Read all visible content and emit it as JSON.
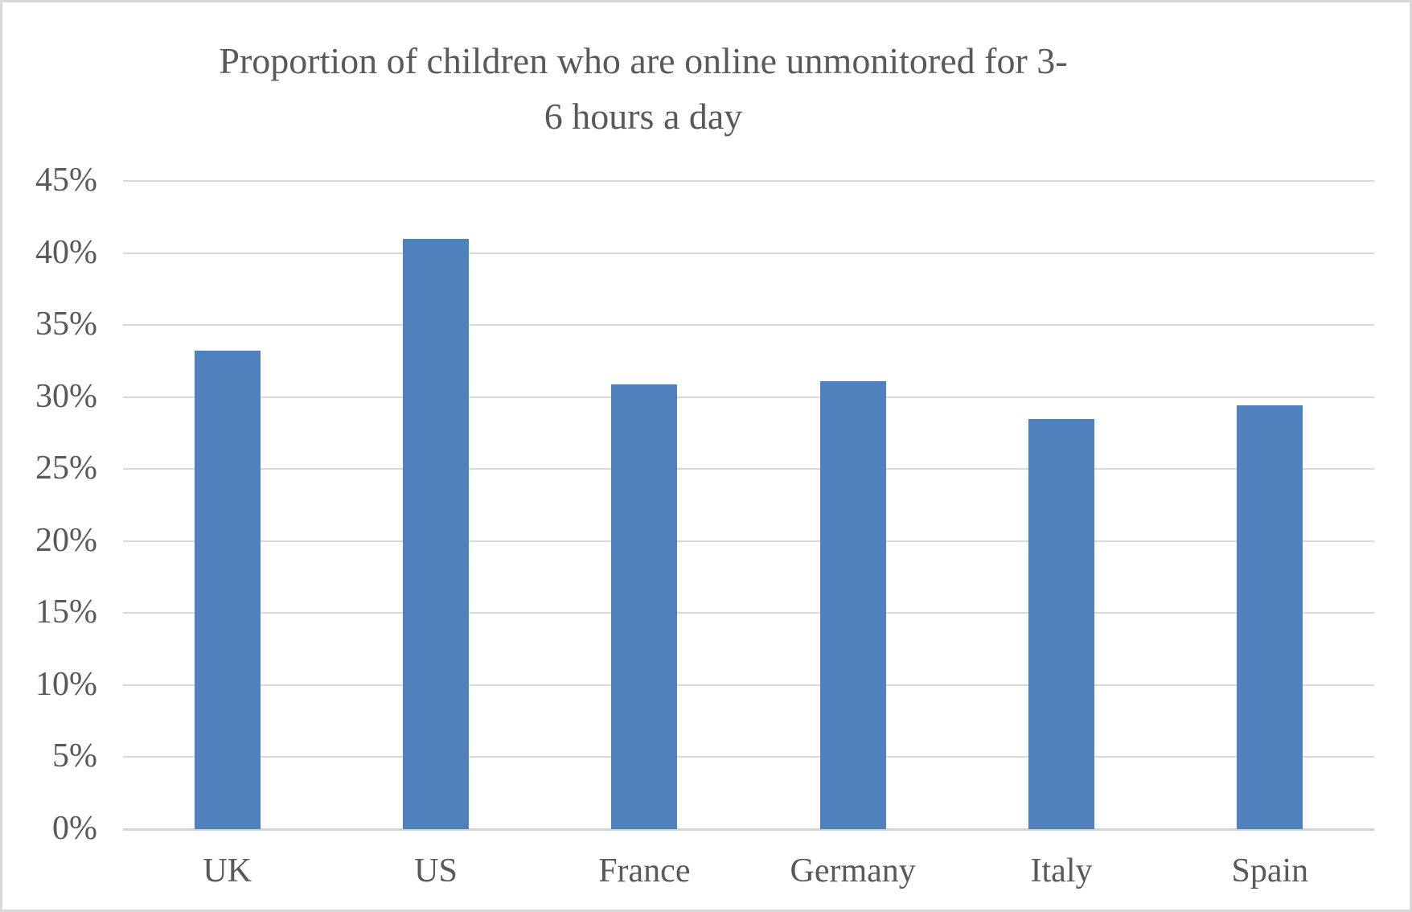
{
  "chart_data": {
    "type": "bar",
    "title": "Proportion of children who are online unmonitored for 3-6 hours a day",
    "title_lines": [
      "Proportion of children who are online unmonitored for 3-",
      "6 hours a day"
    ],
    "categories": [
      "UK",
      "US",
      "France",
      "Germany",
      "Italy",
      "Spain"
    ],
    "values": [
      33.2,
      41,
      30.9,
      31.1,
      28.5,
      29.4
    ],
    "xlabel": "",
    "ylabel": "",
    "ylim": [
      0,
      45
    ],
    "ytick_step": 5,
    "yticks": [
      "0%",
      "5%",
      "10%",
      "15%",
      "20%",
      "25%",
      "30%",
      "35%",
      "40%",
      "45%"
    ],
    "grid": true,
    "legend": false,
    "colors": {
      "bar": "#4F81BD",
      "gridline": "#D9D9D9",
      "baseline": "#D3D3D3",
      "text": "#595959",
      "background": "#FFFFFF",
      "border": "#D8D8D8"
    }
  }
}
